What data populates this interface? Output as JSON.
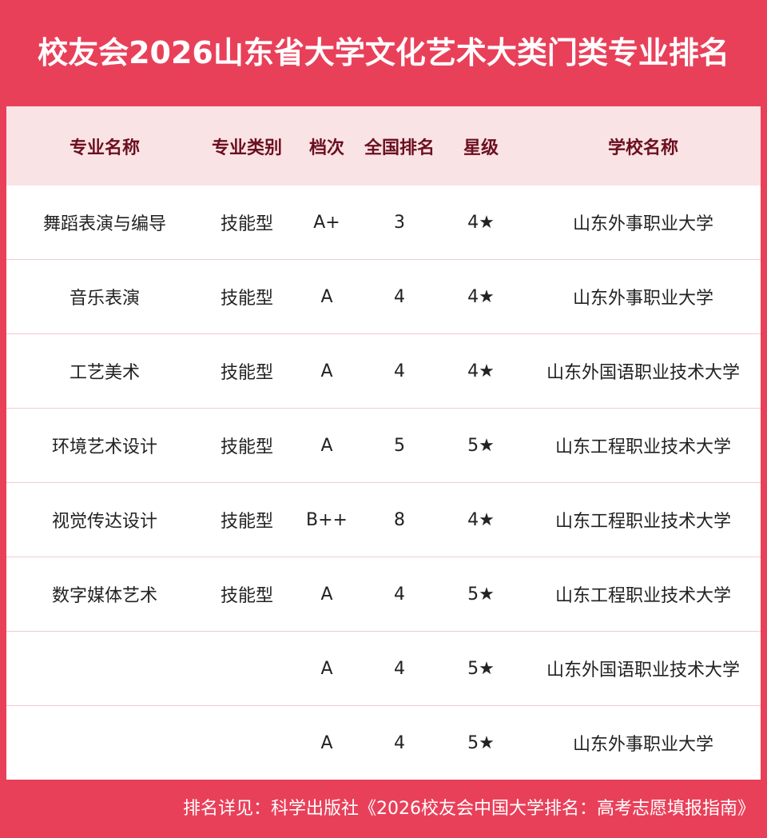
{
  "header": {
    "title": "校友会2026山东省大学文化艺术大类门类专业排名"
  },
  "table": {
    "columns": [
      "专业名称",
      "专业类别",
      "档次",
      "全国排名",
      "星级",
      "学校名称"
    ],
    "rows": [
      [
        "舞蹈表演与编导",
        "技能型",
        "A+",
        3,
        "4★",
        "山东外事职业大学"
      ],
      [
        "音乐表演",
        "技能型",
        "A",
        4,
        "4★",
        "山东外事职业大学"
      ],
      [
        "工艺美术",
        "技能型",
        "A",
        4,
        "4★",
        "山东外国语职业技术大学"
      ],
      [
        "环境艺术设计",
        "技能型",
        "A",
        5,
        "5★",
        "山东工程职业技术大学"
      ],
      [
        "视觉传达设计",
        "技能型",
        "B++",
        8,
        "4★",
        "山东工程职业技术大学"
      ],
      [
        "数字媒体艺术",
        "技能型",
        "A",
        4,
        "5★",
        "山东工程职业技术大学"
      ],
      [
        null,
        null,
        "A",
        4,
        "5★",
        "山东外国语职业技术大学"
      ],
      [
        null,
        null,
        "A",
        4,
        "5★",
        "山东外事职业大学"
      ]
    ]
  },
  "footer": {
    "note": "排名详见：科学出版社《2026校友会中国大学排名：高考志愿填报指南》"
  }
}
